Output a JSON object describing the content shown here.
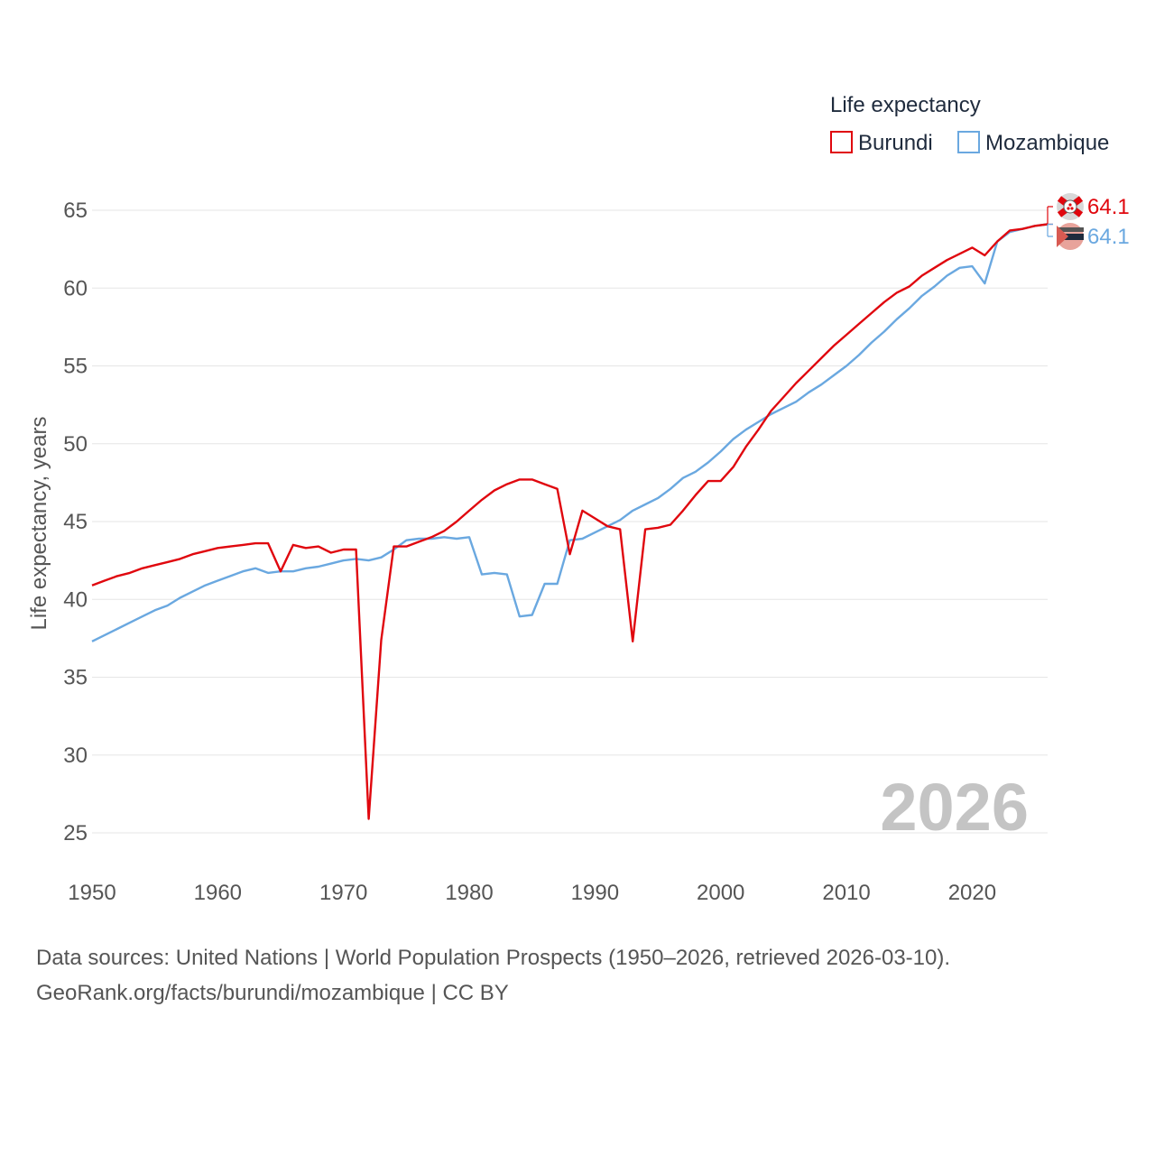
{
  "chart_data": {
    "type": "line",
    "ylabel": "Life expectancy, years",
    "xlim": [
      1950,
      2026
    ],
    "ylim": [
      23,
      66
    ],
    "x_ticks": [
      1950,
      1960,
      1970,
      1980,
      1990,
      2000,
      2010,
      2020
    ],
    "y_ticks": [
      25,
      30,
      35,
      40,
      45,
      50,
      55,
      60,
      65
    ],
    "grid": true,
    "year_label": "2026",
    "legend": {
      "title": "Life expectancy",
      "position": "top-right",
      "entries": [
        "Burundi",
        "Mozambique"
      ]
    },
    "series": [
      {
        "name": "Burundi",
        "color": "#e0070e",
        "end_label": "64.1",
        "flag_icon": "burundi-flag-icon",
        "x": [
          1950,
          1951,
          1952,
          1953,
          1954,
          1955,
          1956,
          1957,
          1958,
          1959,
          1960,
          1961,
          1962,
          1963,
          1964,
          1965,
          1966,
          1967,
          1968,
          1969,
          1970,
          1971,
          1972,
          1973,
          1974,
          1975,
          1976,
          1977,
          1978,
          1979,
          1980,
          1981,
          1982,
          1983,
          1984,
          1985,
          1986,
          1987,
          1988,
          1989,
          1990,
          1991,
          1992,
          1993,
          1994,
          1995,
          1996,
          1997,
          1998,
          1999,
          2000,
          2001,
          2002,
          2003,
          2004,
          2005,
          2006,
          2007,
          2008,
          2009,
          2010,
          2011,
          2012,
          2013,
          2014,
          2015,
          2016,
          2017,
          2018,
          2019,
          2020,
          2021,
          2022,
          2023,
          2024,
          2025,
          2026
        ],
        "values": [
          40.9,
          41.2,
          41.5,
          41.7,
          42.0,
          42.2,
          42.4,
          42.6,
          42.9,
          43.1,
          43.3,
          43.4,
          43.5,
          43.6,
          43.6,
          41.8,
          43.5,
          43.3,
          43.4,
          43.0,
          43.2,
          43.2,
          25.9,
          37.4,
          43.4,
          43.4,
          43.7,
          44.0,
          44.4,
          45.0,
          45.7,
          46.4,
          47.0,
          47.4,
          47.7,
          47.7,
          47.4,
          47.1,
          42.9,
          45.7,
          45.2,
          44.7,
          44.5,
          37.3,
          44.5,
          44.6,
          44.8,
          45.7,
          46.7,
          47.6,
          47.6,
          48.5,
          49.8,
          50.9,
          52.1,
          53.0,
          53.9,
          54.7,
          55.5,
          56.3,
          57.0,
          57.7,
          58.4,
          59.1,
          59.7,
          60.1,
          60.8,
          61.3,
          61.8,
          62.2,
          62.6,
          62.1,
          63.0,
          63.7,
          63.8,
          64.0,
          64.1
        ]
      },
      {
        "name": "Mozambique",
        "color": "#6aa8e0",
        "end_label": "64.1",
        "flag_icon": "mozambique-flag-icon",
        "x": [
          1950,
          1951,
          1952,
          1953,
          1954,
          1955,
          1956,
          1957,
          1958,
          1959,
          1960,
          1961,
          1962,
          1963,
          1964,
          1965,
          1966,
          1967,
          1968,
          1969,
          1970,
          1971,
          1972,
          1973,
          1974,
          1975,
          1976,
          1977,
          1978,
          1979,
          1980,
          1981,
          1982,
          1983,
          1984,
          1985,
          1986,
          1987,
          1988,
          1989,
          1990,
          1991,
          1992,
          1993,
          1994,
          1995,
          1996,
          1997,
          1998,
          1999,
          2000,
          2001,
          2002,
          2003,
          2004,
          2005,
          2006,
          2007,
          2008,
          2009,
          2010,
          2011,
          2012,
          2013,
          2014,
          2015,
          2016,
          2017,
          2018,
          2019,
          2020,
          2021,
          2022,
          2023,
          2024,
          2025,
          2026
        ],
        "values": [
          37.3,
          37.7,
          38.1,
          38.5,
          38.9,
          39.3,
          39.6,
          40.1,
          40.5,
          40.9,
          41.2,
          41.5,
          41.8,
          42.0,
          41.7,
          41.8,
          41.8,
          42.0,
          42.1,
          42.3,
          42.5,
          42.6,
          42.5,
          42.7,
          43.2,
          43.8,
          43.9,
          43.9,
          44.0,
          43.9,
          44.0,
          41.6,
          41.7,
          41.6,
          38.9,
          39.0,
          41.0,
          41.0,
          43.8,
          43.9,
          44.3,
          44.7,
          45.1,
          45.7,
          46.1,
          46.5,
          47.1,
          47.8,
          48.2,
          48.8,
          49.5,
          50.3,
          50.9,
          51.4,
          51.9,
          52.3,
          52.7,
          53.3,
          53.8,
          54.4,
          55.0,
          55.7,
          56.5,
          57.2,
          58.0,
          58.7,
          59.5,
          60.1,
          60.8,
          61.3,
          61.4,
          60.3,
          63.0,
          63.6,
          63.8,
          64.0,
          64.1
        ]
      }
    ]
  },
  "footer": {
    "source_line": "Data sources: United Nations | World Population Prospects (1950–2026, retrieved 2026-03-10).",
    "credit_line": "GeoRank.org/facts/burundi/mozambique | CC BY"
  }
}
